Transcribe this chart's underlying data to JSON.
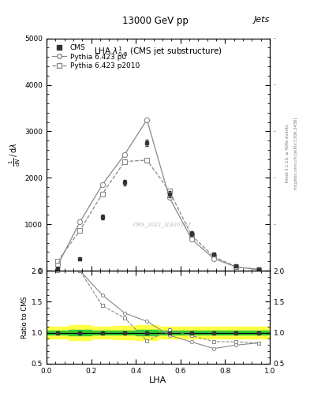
{
  "title_top": "13000 GeV pp",
  "title_right": "Jets",
  "plot_title": "LHA $\\lambda^{1}_{0.5}$ (CMS jet substructure)",
  "xlabel": "LHA",
  "ylabel_ratio": "Ratio to CMS",
  "watermark": "CMS_2021_I1920187",
  "right_label": "mcplots.cern.ch [arXiv:1306.3436]",
  "right_label2": "Rivet 3.1.10, ≥ 400k events",
  "cms_x": [
    0.05,
    0.15,
    0.25,
    0.35,
    0.45,
    0.55,
    0.65,
    0.75,
    0.85,
    0.95
  ],
  "cms_y": [
    50,
    250,
    1150,
    1900,
    2750,
    1650,
    800,
    350,
    100,
    30
  ],
  "cms_yerr": [
    10,
    25,
    50,
    60,
    70,
    65,
    45,
    30,
    15,
    8
  ],
  "p0_x": [
    0.05,
    0.15,
    0.25,
    0.35,
    0.45,
    0.55,
    0.65,
    0.75,
    0.85,
    0.95
  ],
  "p0_y": [
    120,
    1050,
    1850,
    2500,
    3250,
    1580,
    680,
    260,
    80,
    25
  ],
  "p2010_x": [
    0.05,
    0.15,
    0.25,
    0.35,
    0.45,
    0.55,
    0.65,
    0.75,
    0.85,
    0.95
  ],
  "p2010_y": [
    200,
    870,
    1650,
    2350,
    2380,
    1720,
    760,
    300,
    85,
    25
  ],
  "bin_edges": [
    0.0,
    0.1,
    0.2,
    0.3,
    0.4,
    0.5,
    0.6,
    0.7,
    0.8,
    0.9,
    1.0
  ],
  "cms_band_green_lo": [
    0.97,
    0.96,
    0.97,
    0.97,
    0.96,
    0.97,
    0.97,
    0.97,
    0.97,
    0.97
  ],
  "cms_band_green_hi": [
    1.03,
    1.04,
    1.03,
    1.03,
    1.04,
    1.03,
    1.03,
    1.03,
    1.03,
    1.03
  ],
  "cms_band_yellow_lo": [
    0.91,
    0.88,
    0.91,
    0.89,
    0.88,
    0.91,
    0.91,
    0.91,
    0.91,
    0.91
  ],
  "cms_band_yellow_hi": [
    1.09,
    1.12,
    1.09,
    1.11,
    1.12,
    1.09,
    1.09,
    1.09,
    1.09,
    1.09
  ],
  "ylim_main": [
    0,
    5000
  ],
  "ylim_ratio": [
    0.5,
    2.0
  ],
  "xlim": [
    0.0,
    1.0
  ],
  "color_cms": "#333333",
  "color_p0": "#888888",
  "color_p2010": "#888888",
  "color_band_green": "#33cc33",
  "color_band_yellow": "#ffff44",
  "bg_color": "#ffffff"
}
